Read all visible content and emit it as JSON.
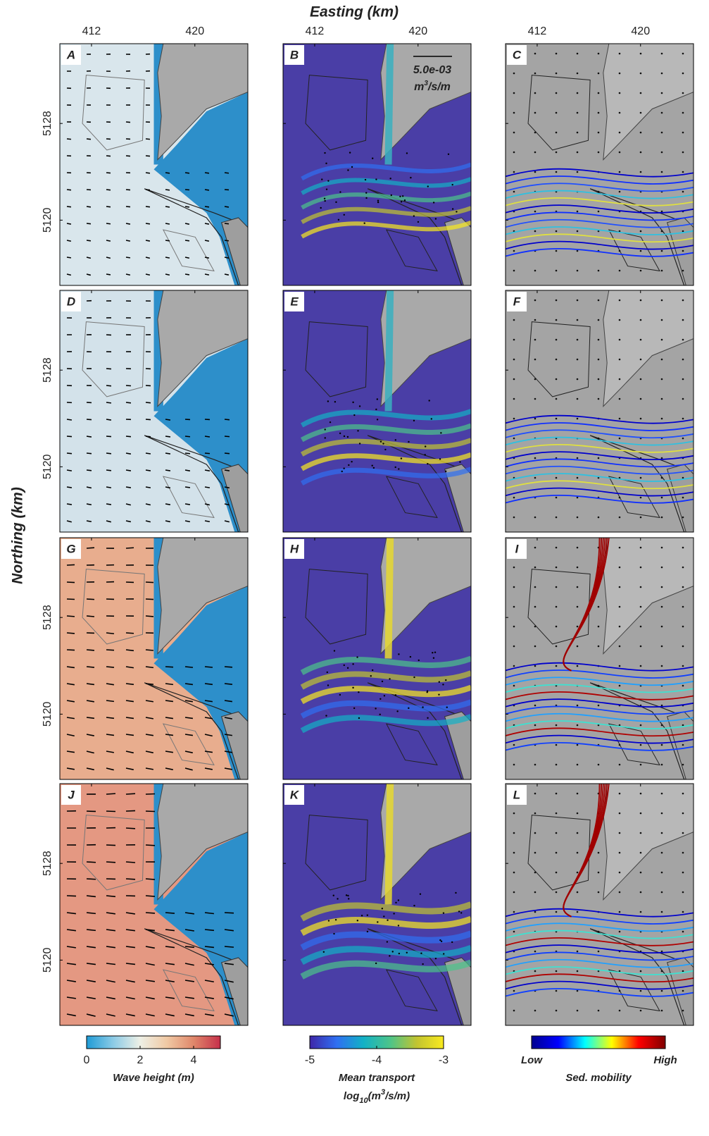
{
  "figure": {
    "x_axis_title": "Easting (km)",
    "y_axis_title": "Northing (km)",
    "xlim": [
      409.55,
      424.1
    ],
    "ylim": [
      5114.6,
      5134.6
    ],
    "xticks": [
      412,
      420
    ],
    "yticks": [
      5128,
      5120
    ],
    "panels": [
      "A",
      "B",
      "C",
      "D",
      "E",
      "F",
      "G",
      "H",
      "I",
      "J",
      "K",
      "L"
    ],
    "scale_label": "5.0e-03",
    "scale_unit": {
      "base": "m",
      "exponent": "3",
      "rest": "/s/m"
    },
    "colorbars": [
      {
        "label": "Wave height (m)",
        "lim": [
          0,
          5
        ],
        "ticks": [
          0,
          2,
          4
        ],
        "colors": [
          "#1f9bd6",
          "#8ccbe6",
          "#eef0e6",
          "#f0c9a4",
          "#e0876a",
          "#c6304a"
        ]
      },
      {
        "label": "Mean transport",
        "unit": {
          "prefix": "log",
          "subscript": "10",
          "open": "(m",
          "exponent": "3",
          "rest": "/s/m)"
        },
        "lim": [
          -5,
          -3
        ],
        "ticks": [
          -5,
          -4,
          -3
        ],
        "colors": [
          "#3e26a8",
          "#2f6ff2",
          "#12b1c6",
          "#4cc48a",
          "#c2c430",
          "#f9ea1f"
        ]
      },
      {
        "label": "Sed. mobility",
        "end_labels": [
          "Low",
          "High"
        ],
        "colors": [
          "#00008f",
          "#0000ff",
          "#00ffff",
          "#ffff00",
          "#ff0000",
          "#800000"
        ]
      }
    ]
  }
}
